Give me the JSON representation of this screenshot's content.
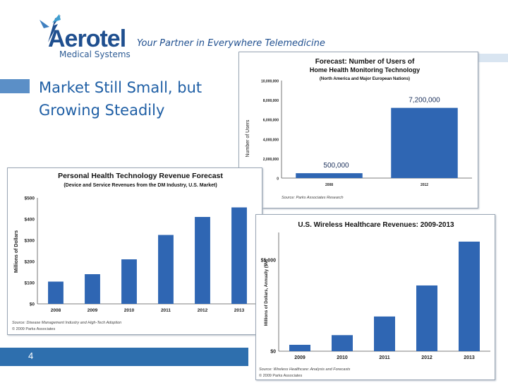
{
  "header": {
    "logo_word": "Aerotel",
    "logo_sub": "Medical Systems",
    "tagline": "Your Partner in Everywhere Telemedicine"
  },
  "slide": {
    "title_line1": "Market Still Small, but",
    "title_line2": "Growing Steadily",
    "page_number": "4"
  },
  "colors": {
    "brand": "#1f4f8f",
    "title": "#1f5fa5",
    "bar": "#2f66b3"
  },
  "chart_data": [
    {
      "type": "bar",
      "title": "Forecast: Number of Users of",
      "subtitle": "Home Health Monitoring Technology",
      "subtitle2": "(North America and Major European Nations)",
      "ylabel": "Number of Users",
      "xlabel": "",
      "categories": [
        "2008",
        "2012"
      ],
      "values": [
        500000,
        7200000
      ],
      "data_labels": [
        "500,000",
        "7,200,000"
      ],
      "yticks": [
        "0",
        "2,000,000",
        "4,000,000",
        "6,000,000",
        "8,000,000",
        "10,000,000"
      ],
      "ylim": [
        0,
        10000000
      ],
      "source": "Source: Parks Associates Research"
    },
    {
      "type": "bar",
      "title": "Personal Health Technology Revenue Forecast",
      "subtitle": "(Device and Service Revenues from the DM Industry, U.S. Market)",
      "ylabel": "Millions of Dollars",
      "xlabel": "",
      "categories": [
        "2008",
        "2009",
        "2010",
        "2011",
        "2012",
        "2013"
      ],
      "values": [
        105,
        140,
        210,
        325,
        410,
        455
      ],
      "yticks": [
        "$0",
        "$100",
        "$200",
        "$300",
        "$400",
        "$500"
      ],
      "ylim": [
        0,
        500
      ],
      "source_line1": "Source: Disease Management Industry and High-Tech Adoption",
      "source_line2": "© 2009 Parks Associates"
    },
    {
      "type": "bar",
      "title": "U.S. Wireless Healthcare Revenues: 2009-2013",
      "ylabel": "Millions of Dollars, Annually ($M)",
      "xlabel": "",
      "categories": [
        "2009",
        "2010",
        "2011",
        "2012",
        "2013"
      ],
      "values": [
        350,
        880,
        1900,
        3600,
        6000
      ],
      "yticks": [
        "$0",
        "$5,000"
      ],
      "ytick_values": [
        0,
        5000
      ],
      "ylim": [
        0,
        6500
      ],
      "source_line1": "Source: Wireless Healthcare: Analysis and Forecasts",
      "source_line2": "© 2009 Parks Associates"
    }
  ]
}
